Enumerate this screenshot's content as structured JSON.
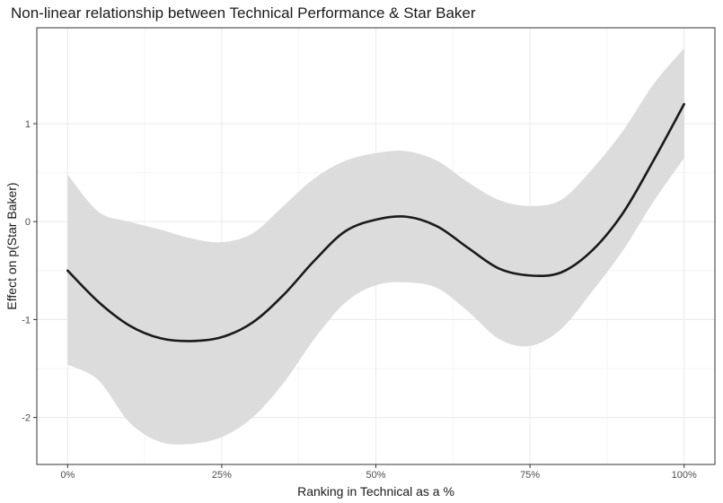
{
  "chart_data": {
    "type": "line",
    "title": "Non-linear relationship between Technical Performance & Star Baker",
    "xlabel": "Ranking in Technical as a %",
    "ylabel": "Effect on p(Star Baker)",
    "xlim": [
      -0.05,
      1.05
    ],
    "ylim": [
      -2.48,
      1.98
    ],
    "x_ticks": [
      0,
      0.25,
      0.5,
      0.75,
      1.0
    ],
    "x_tick_labels": [
      "0%",
      "25%",
      "50%",
      "75%",
      "100%"
    ],
    "y_ticks": [
      -2,
      -1,
      0,
      1
    ],
    "y_tick_labels": [
      "-2",
      "-1",
      "0",
      "1"
    ],
    "grid": true,
    "series": [
      {
        "kind": "fit",
        "color": "#1a1a1a",
        "x": [
          0,
          0.05,
          0.1,
          0.15,
          0.2,
          0.25,
          0.3,
          0.35,
          0.4,
          0.45,
          0.5,
          0.55,
          0.6,
          0.65,
          0.7,
          0.75,
          0.8,
          0.85,
          0.9,
          0.95,
          1.0
        ],
        "y": [
          -0.5,
          -0.82,
          -1.06,
          -1.19,
          -1.22,
          -1.18,
          -1.03,
          -0.75,
          -0.4,
          -0.1,
          0.02,
          0.05,
          -0.05,
          -0.27,
          -0.48,
          -0.55,
          -0.52,
          -0.3,
          0.08,
          0.62,
          1.2
        ]
      },
      {
        "kind": "confidence_band",
        "color": "#dcdcdc",
        "x": [
          0,
          0.05,
          0.1,
          0.15,
          0.2,
          0.25,
          0.3,
          0.35,
          0.4,
          0.45,
          0.5,
          0.55,
          0.6,
          0.65,
          0.7,
          0.75,
          0.8,
          0.85,
          0.9,
          0.95,
          1.0
        ],
        "lower": [
          -1.46,
          -1.62,
          -2.05,
          -2.25,
          -2.27,
          -2.2,
          -2.0,
          -1.65,
          -1.2,
          -0.83,
          -0.65,
          -0.62,
          -0.68,
          -0.92,
          -1.2,
          -1.27,
          -1.1,
          -0.72,
          -0.3,
          0.2,
          0.65
        ],
        "upper": [
          0.48,
          0.1,
          0.0,
          -0.08,
          -0.17,
          -0.21,
          -0.12,
          0.16,
          0.44,
          0.62,
          0.7,
          0.72,
          0.62,
          0.4,
          0.22,
          0.16,
          0.22,
          0.53,
          0.92,
          1.4,
          1.77
        ]
      }
    ]
  }
}
